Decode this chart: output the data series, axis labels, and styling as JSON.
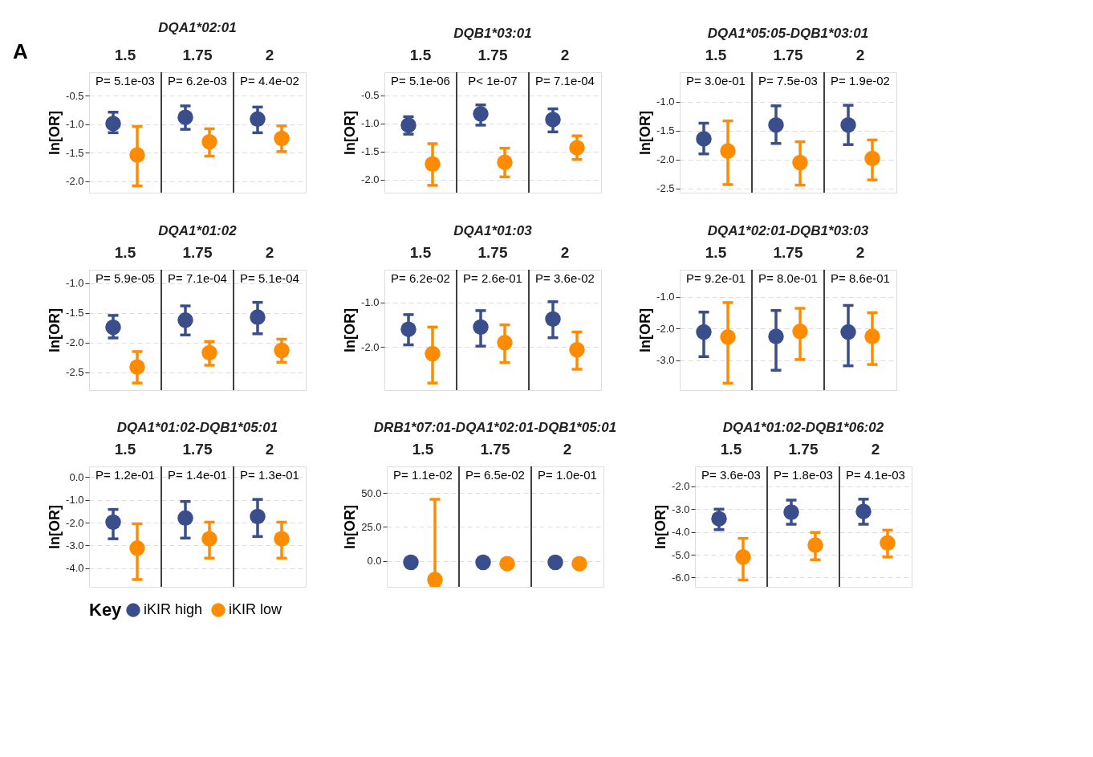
{
  "chart_data": [
    {
      "type": "scatter",
      "title": "DQA1*02:01",
      "ylabel": "ln[OR]",
      "categories": [
        "1.5",
        "1.75",
        "2"
      ],
      "marker": "circle",
      "grid": "y",
      "legend": "bottom",
      "legend_title": "Key",
      "ylim": [
        -2.2,
        -0.09
      ],
      "yticks": [
        {
          "value": -0.5,
          "label": "-0.5"
        },
        {
          "value": -1,
          "label": "-1.0"
        },
        {
          "value": -1.5,
          "label": "-1.5"
        },
        {
          "value": -2,
          "label": "-2.0"
        }
      ],
      "series": [
        {
          "name": "iKIR high",
          "color": "#3a4e8c",
          "values": [
            -0.99,
            -0.88,
            -0.91
          ],
          "errors": [
            [
              -1.15,
              -0.79
            ],
            [
              -1.09,
              -0.68
            ],
            [
              -1.15,
              -0.7
            ]
          ]
        },
        {
          "name": "iKIR low",
          "color": "#ff8c00",
          "values": [
            -1.54,
            -1.31,
            -1.25
          ],
          "errors": [
            [
              -2.08,
              -1.04
            ],
            [
              -1.56,
              -1.08
            ],
            [
              -1.48,
              -1.03
            ]
          ]
        }
      ],
      "annotations": [
        "A",
        "P= 5.1e-03",
        "P= 6.2e-03",
        "P= 4.4e-02"
      ]
    },
    {
      "type": "scatter",
      "title": "DQB1*03:01",
      "ylabel": "ln[OR]",
      "categories": [
        "1.5",
        "1.75",
        "2"
      ],
      "marker": "circle",
      "grid": "y",
      "ylim": [
        -2.23,
        -0.09
      ],
      "yticks": [
        {
          "value": -0.5,
          "label": "-0.5"
        },
        {
          "value": -1,
          "label": "-1.0"
        },
        {
          "value": -1.5,
          "label": "-1.5"
        },
        {
          "value": -2,
          "label": "-2.0"
        }
      ],
      "series": [
        {
          "name": "iKIR high",
          "color": "#3a4e8c",
          "values": [
            -1.03,
            -0.83,
            -0.93
          ],
          "errors": [
            [
              -1.19,
              -0.88
            ],
            [
              -1.03,
              -0.67
            ],
            [
              -1.15,
              -0.74
            ]
          ]
        },
        {
          "name": "iKIR low",
          "color": "#ff8c00",
          "values": [
            -1.72,
            -1.69,
            -1.43
          ],
          "errors": [
            [
              -2.1,
              -1.36
            ],
            [
              -1.95,
              -1.44
            ],
            [
              -1.64,
              -1.22
            ]
          ]
        }
      ],
      "annotations": [
        "P= 5.1e-06",
        "P< 1e-07",
        "P= 7.1e-04"
      ]
    },
    {
      "type": "scatter",
      "title": "DQA1*05:05-DQB1*03:01",
      "ylabel": "ln[OR]",
      "categories": [
        "1.5",
        "1.75",
        "2"
      ],
      "marker": "circle",
      "grid": "y",
      "ylim": [
        -2.57,
        -0.49
      ],
      "yticks": [
        {
          "value": -1,
          "label": "-1.0"
        },
        {
          "value": -1.5,
          "label": "-1.5"
        },
        {
          "value": -2,
          "label": "-2.0"
        },
        {
          "value": -2.5,
          "label": "-2.5"
        }
      ],
      "series": [
        {
          "name": "iKIR high",
          "color": "#3a4e8c",
          "values": [
            -1.64,
            -1.4,
            -1.4
          ],
          "errors": [
            [
              -1.9,
              -1.37
            ],
            [
              -1.72,
              -1.07
            ],
            [
              -1.74,
              -1.06
            ]
          ]
        },
        {
          "name": "iKIR low",
          "color": "#ff8c00",
          "values": [
            -1.85,
            -2.05,
            -1.98
          ],
          "errors": [
            [
              -2.43,
              -1.33
            ],
            [
              -2.44,
              -1.69
            ],
            [
              -2.35,
              -1.66
            ]
          ]
        }
      ],
      "annotations": [
        "P= 3.0e-01",
        "P= 7.5e-03",
        "P= 1.9e-02"
      ]
    },
    {
      "type": "scatter",
      "title": "DQA1*01:02",
      "ylabel": "ln[OR]",
      "categories": [
        "1.5",
        "1.75",
        "2"
      ],
      "marker": "circle",
      "grid": "y",
      "ylim": [
        -2.8,
        -0.77
      ],
      "yticks": [
        {
          "value": -1,
          "label": "-1.0"
        },
        {
          "value": -1.5,
          "label": "-1.5"
        },
        {
          "value": -2,
          "label": "-2.0"
        },
        {
          "value": -2.5,
          "label": "-2.5"
        }
      ],
      "series": [
        {
          "name": "iKIR high",
          "color": "#3a4e8c",
          "values": [
            -1.74,
            -1.62,
            -1.57
          ],
          "errors": [
            [
              -1.92,
              -1.54
            ],
            [
              -1.87,
              -1.38
            ],
            [
              -1.85,
              -1.32
            ]
          ]
        },
        {
          "name": "iKIR low",
          "color": "#ff8c00",
          "values": [
            -2.41,
            -2.17,
            -2.13
          ],
          "errors": [
            [
              -2.68,
              -2.15
            ],
            [
              -2.38,
              -1.98
            ],
            [
              -2.33,
              -1.94
            ]
          ]
        }
      ],
      "annotations": [
        "P= 5.9e-05",
        "P= 7.1e-04",
        "P= 5.1e-04"
      ]
    },
    {
      "type": "scatter",
      "title": "DQA1*01:03",
      "ylabel": "ln[OR]",
      "categories": [
        "1.5",
        "1.75",
        "2"
      ],
      "marker": "circle",
      "grid": "y",
      "ylim": [
        -2.97,
        -0.26
      ],
      "yticks": [
        {
          "value": -1,
          "label": "-1.0"
        },
        {
          "value": -2,
          "label": "-2.0"
        }
      ],
      "series": [
        {
          "name": "iKIR high",
          "color": "#3a4e8c",
          "values": [
            -1.6,
            -1.55,
            -1.37
          ],
          "errors": [
            [
              -1.95,
              -1.27
            ],
            [
              -1.98,
              -1.18
            ],
            [
              -1.79,
              -0.98
            ]
          ]
        },
        {
          "name": "iKIR low",
          "color": "#ff8c00",
          "values": [
            -2.15,
            -1.9,
            -2.06
          ],
          "errors": [
            [
              -2.81,
              -1.55
            ],
            [
              -2.35,
              -1.5
            ],
            [
              -2.5,
              -1.66
            ]
          ]
        }
      ],
      "annotations": [
        "P= 6.2e-02",
        "P= 2.6e-01",
        "P= 3.6e-02"
      ]
    },
    {
      "type": "scatter",
      "title": "DQA1*02:01-DQB1*03:03",
      "ylabel": "ln[OR]",
      "categories": [
        "1.5",
        "1.75",
        "2"
      ],
      "marker": "circle",
      "grid": "y",
      "ylim": [
        -3.95,
        -0.14
      ],
      "yticks": [
        {
          "value": -1,
          "label": "-1.0"
        },
        {
          "value": -2,
          "label": "-2.0"
        },
        {
          "value": -3,
          "label": "-3.0"
        }
      ],
      "series": [
        {
          "name": "iKIR high",
          "color": "#3a4e8c",
          "values": [
            -2.11,
            -2.25,
            -2.11
          ],
          "errors": [
            [
              -2.89,
              -1.48
            ],
            [
              -3.32,
              -1.43
            ],
            [
              -3.18,
              -1.27
            ]
          ]
        },
        {
          "name": "iKIR low",
          "color": "#ff8c00",
          "values": [
            -2.27,
            -2.09,
            -2.25
          ],
          "errors": [
            [
              -3.73,
              -1.18
            ],
            [
              -2.98,
              -1.36
            ],
            [
              -3.14,
              -1.5
            ]
          ]
        }
      ],
      "annotations": [
        "P= 9.2e-01",
        "P= 8.0e-01",
        "P= 8.6e-01"
      ]
    },
    {
      "type": "scatter",
      "title": "DQA1*01:02-DQB1*05:01",
      "ylabel": "ln[OR]",
      "categories": [
        "1.5",
        "1.75",
        "2"
      ],
      "marker": "circle",
      "grid": "y",
      "ylim": [
        -4.82,
        0.47
      ],
      "yticks": [
        {
          "value": 0,
          "label": "0.0"
        },
        {
          "value": -1,
          "label": "-1.0"
        },
        {
          "value": -2,
          "label": "-2.0"
        },
        {
          "value": -3,
          "label": "-3.0"
        },
        {
          "value": -4,
          "label": "-4.0"
        }
      ],
      "series": [
        {
          "name": "iKIR high",
          "color": "#3a4e8c",
          "values": [
            -1.98,
            -1.8,
            -1.73
          ],
          "errors": [
            [
              -2.71,
              -1.42
            ],
            [
              -2.68,
              -1.07
            ],
            [
              -2.61,
              -0.98
            ]
          ]
        },
        {
          "name": "iKIR low",
          "color": "#ff8c00",
          "values": [
            -3.12,
            -2.71,
            -2.71
          ],
          "errors": [
            [
              -4.5,
              -2.05
            ],
            [
              -3.56,
              -1.98
            ],
            [
              -3.56,
              -1.98
            ]
          ]
        }
      ],
      "annotations": [
        "P= 1.2e-01",
        "P= 1.4e-01",
        "P= 1.3e-01"
      ]
    },
    {
      "type": "scatter",
      "title": "DRB1*07:01-DQA1*02:01-DQB1*05:01",
      "ylabel": "ln[OR]",
      "categories": [
        "1.5",
        "1.75",
        "2"
      ],
      "marker": "circle",
      "grid": "y",
      "ylim": [
        -19,
        69.5
      ],
      "yticks": [
        {
          "value": 0,
          "label": "0.0"
        },
        {
          "value": 25,
          "label": "25.0"
        },
        {
          "value": 50,
          "label": "50.0"
        }
      ],
      "series": [
        {
          "name": "iKIR high",
          "color": "#3a4e8c",
          "values": [
            -1,
            -1,
            -1
          ]
        },
        {
          "name": "iKIR low",
          "color": "#ff8c00",
          "values": [
            -13.7,
            -2,
            -2
          ],
          "errors": [
            [
              -19,
              45.3
            ],
            null,
            null
          ]
        }
      ],
      "annotations": [
        "P= 1.1e-02",
        "P= 6.5e-02",
        "P= 1.0e-01"
      ]
    },
    {
      "type": "scatter",
      "title": "DQA1*01:02-DQB1*06:02",
      "ylabel": "ln[OR]",
      "categories": [
        "1.5",
        "1.75",
        "2"
      ],
      "marker": "circle",
      "grid": "y",
      "ylim": [
        -6.41,
        -1.12
      ],
      "yticks": [
        {
          "value": -2,
          "label": "-2.0"
        },
        {
          "value": -3,
          "label": "-3.0"
        },
        {
          "value": -4,
          "label": "-4.0"
        },
        {
          "value": -5,
          "label": "-5.0"
        },
        {
          "value": -6,
          "label": "-6.0"
        }
      ],
      "series": [
        {
          "name": "iKIR high",
          "color": "#3a4e8c",
          "values": [
            -3.42,
            -3.13,
            -3.1
          ],
          "errors": [
            [
              -3.9,
              -3.0
            ],
            [
              -3.66,
              -2.6
            ],
            [
              -3.66,
              -2.56
            ]
          ]
        },
        {
          "name": "iKIR low",
          "color": "#ff8c00",
          "values": [
            -5.1,
            -4.58,
            -4.48
          ],
          "errors": [
            [
              -6.11,
              -4.28
            ],
            [
              -5.22,
              -4.02
            ],
            [
              -5.1,
              -3.92
            ]
          ]
        }
      ],
      "annotations": [
        "P= 3.6e-03",
        "P= 1.8e-03",
        "P= 4.1e-03"
      ]
    }
  ]
}
